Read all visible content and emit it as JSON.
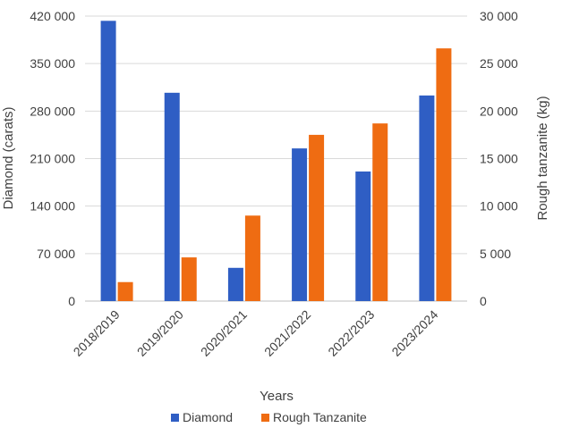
{
  "chart_data": {
    "type": "bar",
    "title": "",
    "categories": [
      "2018/2019",
      "2019/2020",
      "2020/2021",
      "2021/2022",
      "2022/2023",
      "2023/2024"
    ],
    "series": [
      {
        "name": "Diamond",
        "axis": "left",
        "color": "#2f5ec4",
        "values": [
          413000,
          307000,
          49000,
          225000,
          191000,
          303000
        ]
      },
      {
        "name": "Rough Tanzanite",
        "axis": "right",
        "color": "#ef6c12",
        "values": [
          2000,
          4600,
          9000,
          17500,
          18700,
          26600
        ]
      }
    ],
    "xlabel": "Years",
    "ylabel": "Diamond (carats)",
    "y2label": "Rough tanzanite (kg)",
    "ylim": [
      0,
      420000
    ],
    "y2lim": [
      0,
      30000
    ],
    "yticks": [
      0,
      70000,
      140000,
      210000,
      280000,
      350000,
      420000
    ],
    "y2ticks": [
      0,
      5000,
      10000,
      15000,
      20000,
      25000,
      30000
    ],
    "yticklabels": [
      "0",
      "70 000",
      "140 000",
      "210 000",
      "280 000",
      "350 000",
      "420 000"
    ],
    "y2ticklabels": [
      "0",
      "5 000",
      "10 000",
      "15 000",
      "20 000",
      "25 000",
      "30 000"
    ],
    "grid": true,
    "legend_position": "bottom"
  }
}
